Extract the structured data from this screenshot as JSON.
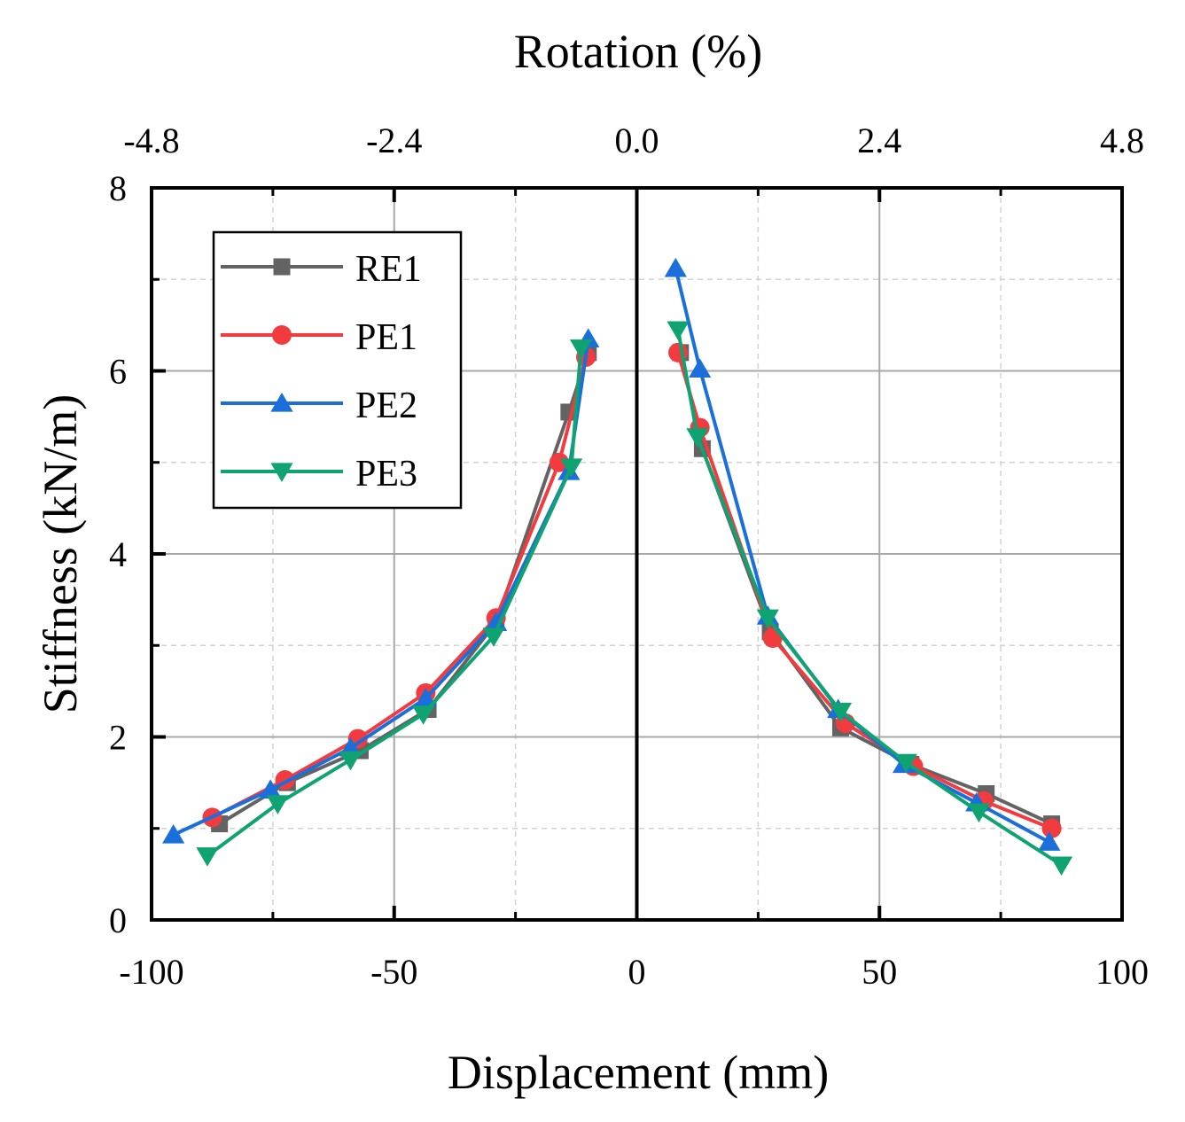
{
  "chart_data": {
    "type": "line",
    "title": "",
    "xlabel": "Displacement (mm)",
    "x2label": "Rotation (%)",
    "ylabel": "Stiffness (kN/m)",
    "xlim": [
      -100,
      100
    ],
    "x2lim": [
      -4.8,
      4.8
    ],
    "ylim": [
      0,
      8
    ],
    "xticks": [
      -100,
      -50,
      0,
      50,
      100
    ],
    "xtick_labels": [
      "-100",
      "-50",
      "0",
      "50",
      "100"
    ],
    "x2ticks": [
      -4.8,
      -2.4,
      0.0,
      2.4,
      4.8
    ],
    "x2tick_labels": [
      "-4.8",
      "-2.4",
      "0.0",
      "2.4",
      "4.8"
    ],
    "yticks": [
      0,
      2,
      4,
      6,
      8
    ],
    "ytick_labels": [
      "0",
      "2",
      "4",
      "6",
      "8"
    ],
    "grid": true,
    "legend_position": "top-left",
    "zero_line": true,
    "series": [
      {
        "name": "RE1",
        "color": "#636363",
        "marker": "square",
        "branches": [
          [
            [
              -10,
              6.2
            ],
            [
              -14,
              5.55
            ],
            [
              -29,
              3.25
            ],
            [
              -43,
              2.3
            ],
            [
              -57,
              1.85
            ],
            [
              -72,
              1.5
            ],
            [
              -86,
              1.05
            ]
          ],
          [
            [
              9,
              6.2
            ],
            [
              13.5,
              5.15
            ],
            [
              27.5,
              3.15
            ],
            [
              42,
              2.1
            ],
            [
              56.5,
              1.7
            ],
            [
              72,
              1.38
            ],
            [
              85.5,
              1.05
            ]
          ]
        ]
      },
      {
        "name": "PE1",
        "color": "#f23b3f",
        "marker": "circle",
        "branches": [
          [
            [
              -10.5,
              6.15
            ],
            [
              -16,
              5.0
            ],
            [
              -29,
              3.3
            ],
            [
              -43.5,
              2.48
            ],
            [
              -57.5,
              1.98
            ],
            [
              -72.5,
              1.53
            ],
            [
              -87.5,
              1.12
            ]
          ],
          [
            [
              8.5,
              6.2
            ],
            [
              13,
              5.38
            ],
            [
              28,
              3.08
            ],
            [
              43,
              2.15
            ],
            [
              57,
              1.68
            ],
            [
              71.5,
              1.3
            ],
            [
              85.5,
              1.0
            ]
          ]
        ]
      },
      {
        "name": "PE2",
        "color": "#1a6fdb",
        "marker": "triangle-up",
        "branches": [
          [
            [
              -10,
              6.35
            ],
            [
              -14,
              4.9
            ],
            [
              -29,
              3.25
            ],
            [
              -43.5,
              2.42
            ],
            [
              -59,
              1.88
            ],
            [
              -75.5,
              1.42
            ],
            [
              -95.5,
              0.93
            ]
          ],
          [
            [
              8,
              7.12
            ],
            [
              13,
              6.02
            ],
            [
              27,
              3.32
            ],
            [
              41.5,
              2.3
            ],
            [
              55,
              1.7
            ],
            [
              70,
              1.28
            ],
            [
              85,
              0.85
            ]
          ]
        ]
      },
      {
        "name": "PE3",
        "color": "#0fa372",
        "marker": "triangle-down",
        "branches": [
          [
            [
              -11.5,
              6.25
            ],
            [
              -13.5,
              4.95
            ],
            [
              -29.5,
              3.1
            ],
            [
              -44,
              2.25
            ],
            [
              -59,
              1.75
            ],
            [
              -74,
              1.27
            ],
            [
              -88.5,
              0.7
            ]
          ],
          [
            [
              8.5,
              6.45
            ],
            [
              12.5,
              5.28
            ],
            [
              27,
              3.3
            ],
            [
              42,
              2.28
            ],
            [
              55.5,
              1.72
            ],
            [
              70.5,
              1.18
            ],
            [
              87.5,
              0.6
            ]
          ]
        ]
      }
    ]
  }
}
